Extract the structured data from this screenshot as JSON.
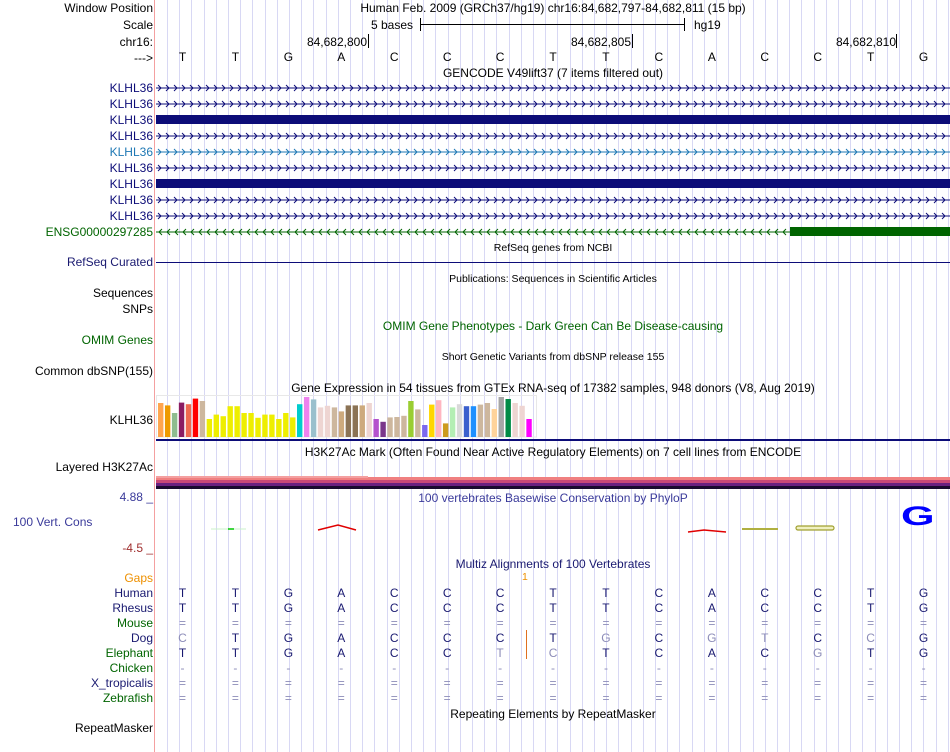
{
  "header": {
    "window_position_label": "Window Position",
    "scale_label": "Scale",
    "chrom_label": "chr16:",
    "strand_label": "--->",
    "assembly_title": "Human Feb. 2009 (GRCh37/hg19)   chr16:84,682,797-84,682,811 (15 bp)",
    "scale_text": "5 bases",
    "scale_db": "hg19",
    "ruler_ticks": [
      "84,682,800",
      "84,682,805",
      "84,682,810"
    ]
  },
  "sequence": [
    "T",
    "T",
    "G",
    "A",
    "C",
    "C",
    "C",
    "T",
    "T",
    "C",
    "A",
    "C",
    "C",
    "T",
    "G"
  ],
  "gencode": {
    "title": "GENCODE V49lift37 (7 items filtered out)",
    "items": [
      {
        "label": "KLHL36",
        "style": "intron",
        "color": "#0c0c78"
      },
      {
        "label": "KLHL36",
        "style": "intron",
        "color": "#0c0c78"
      },
      {
        "label": "KLHL36",
        "style": "exon",
        "color": "#0c0c78"
      },
      {
        "label": "KLHL36",
        "style": "intron",
        "color": "#0c0c78"
      },
      {
        "label": "KLHL36",
        "style": "intron",
        "color": "#1e78b4"
      },
      {
        "label": "KLHL36",
        "style": "intron",
        "color": "#0c0c78"
      },
      {
        "label": "KLHL36",
        "style": "exon",
        "color": "#0c0c78"
      },
      {
        "label": "KLHL36",
        "style": "intron",
        "color": "#0c0c78"
      },
      {
        "label": "KLHL36",
        "style": "intron",
        "color": "#0c0c78"
      },
      {
        "label": "ENSG00000297285",
        "style": "reverse-partial",
        "color": "#006400"
      }
    ]
  },
  "refseq": {
    "title": "RefSeq genes from NCBI",
    "label": "RefSeq Curated"
  },
  "publications": {
    "title": "Publications: Sequences in Scientific Articles",
    "label1": "Sequences",
    "label2": "SNPs"
  },
  "omim": {
    "title": "OMIM Gene Phenotypes - Dark Green Can Be Disease-causing",
    "label": "OMIM Genes"
  },
  "dbsnp": {
    "title": "Short Genetic Variants from dbSNP release 155",
    "label": "Common dbSNP(155)"
  },
  "gtex": {
    "title": "Gene Expression in 54 tissues from GTEx RNA-seq of 17382 samples, 948 donors (V8, Aug 2019)",
    "label": "KLHL36"
  },
  "chart_data": {
    "type": "bar",
    "title": "Gene Expression in 54 tissues from GTEx RNA-seq of 17382 samples, 948 donors (V8, Aug 2019)",
    "xlabel": "",
    "ylabel": "",
    "ylim": [
      0,
      1
    ],
    "values": [
      0.85,
      0.79,
      0.6,
      0.86,
      0.82,
      0.96,
      0.9,
      0.45,
      0.56,
      0.52,
      0.77,
      0.77,
      0.6,
      0.6,
      0.48,
      0.56,
      0.56,
      0.45,
      0.6,
      0.49,
      0.82,
      1.0,
      0.94,
      0.74,
      0.78,
      0.74,
      0.64,
      0.79,
      0.79,
      0.79,
      0.85,
      0.45,
      0.38,
      0.49,
      0.5,
      0.53,
      0.9,
      0.69,
      0.3,
      0.81,
      0.92,
      0.34,
      0.74,
      0.82,
      0.77,
      0.77,
      0.81,
      0.85,
      0.7,
      1.0,
      0.95,
      0.85,
      0.78,
      0.45
    ],
    "colors": [
      "#FFA54F",
      "#EE9A00",
      "#8FBC8F",
      "#8B1C62",
      "#EE6A50",
      "#FF0000",
      "#CDB79E",
      "#EEEE00",
      "#EEEE00",
      "#EEEE00",
      "#EEEE00",
      "#EEEE00",
      "#EEEE00",
      "#EEEE00",
      "#EEEE00",
      "#EEEE00",
      "#EEEE00",
      "#EEEE00",
      "#EEEE00",
      "#EEEE00",
      "#00CDCD",
      "#EE82EE",
      "#9AC0CD",
      "#EED5D2",
      "#EED5D2",
      "#CDB79E",
      "#CDAA7D",
      "#8B7355",
      "#8B7355",
      "#CDAA7D",
      "#EED5D2",
      "#B452CD",
      "#7A378B",
      "#CDB79E",
      "#CDB79E",
      "#CDB79E",
      "#9ACD32",
      "#CDB79E",
      "#7B68EE",
      "#FFD700",
      "#FFB6C1",
      "#CD9B1D",
      "#B4EEB4",
      "#D9D9D9",
      "#3A5FCD",
      "#1E90FF",
      "#CDB79E",
      "#CDB79E",
      "#FFD39B",
      "#A6A6A6",
      "#008B45",
      "#EED5D2",
      "#EED5D2",
      "#FF00FF"
    ]
  },
  "h3k27ac": {
    "title": "H3K27Ac Mark (Often Found Near Active Regulatory Elements) on 7 cell lines from ENCODE",
    "label": "Layered H3K27Ac"
  },
  "phylop": {
    "title": "100 vertebrates Basewise Conservation by PhyloP",
    "label": "100 Vert. Cons",
    "ymax_label": "4.88 _",
    "ymin_label": "-4.5 _",
    "logo_letter": "G"
  },
  "multiz": {
    "title": "Multiz Alignments of 100 Vertebrates",
    "gaps_label": "Gaps",
    "gap_count": "1",
    "species": [
      {
        "name": "Human",
        "color": "#191970",
        "seq": [
          "T",
          "T",
          "G",
          "A",
          "C",
          "C",
          "C",
          "T",
          "T",
          "C",
          "A",
          "C",
          "C",
          "T",
          "G"
        ],
        "faint": [
          false,
          false,
          false,
          false,
          false,
          false,
          false,
          false,
          false,
          false,
          false,
          false,
          false,
          false,
          false
        ]
      },
      {
        "name": "Rhesus",
        "color": "#191970",
        "seq": [
          "T",
          "T",
          "G",
          "A",
          "C",
          "C",
          "C",
          "T",
          "T",
          "C",
          "A",
          "C",
          "C",
          "T",
          "G"
        ],
        "faint": [
          false,
          false,
          false,
          false,
          false,
          false,
          false,
          false,
          false,
          false,
          false,
          false,
          false,
          false,
          false
        ]
      },
      {
        "name": "Mouse",
        "color": "#006400",
        "seq": [
          "=",
          "=",
          "=",
          "=",
          "=",
          "=",
          "=",
          "=",
          "=",
          "=",
          "=",
          "=",
          "=",
          "=",
          "="
        ],
        "faint": [
          true,
          true,
          true,
          true,
          true,
          true,
          true,
          true,
          true,
          true,
          true,
          true,
          true,
          true,
          true
        ]
      },
      {
        "name": "Dog",
        "color": "#191970",
        "seq": [
          "C",
          "T",
          "G",
          "A",
          "C",
          "C",
          "C",
          "T",
          "G",
          "C",
          "G",
          "T",
          "C",
          "C",
          "G"
        ],
        "faint": [
          true,
          false,
          false,
          false,
          false,
          false,
          false,
          false,
          true,
          false,
          true,
          true,
          false,
          true,
          false
        ]
      },
      {
        "name": "Elephant",
        "color": "#006400",
        "seq": [
          "T",
          "T",
          "G",
          "A",
          "C",
          "C",
          "T",
          "C",
          "T",
          "C",
          "A",
          "C",
          "G",
          "T",
          "G"
        ],
        "faint": [
          false,
          false,
          false,
          false,
          false,
          false,
          true,
          true,
          false,
          false,
          false,
          false,
          true,
          false,
          false
        ]
      },
      {
        "name": "Chicken",
        "color": "#006400",
        "seq": [
          "-",
          "-",
          "-",
          "-",
          "-",
          "-",
          "-",
          "-",
          "-",
          "-",
          "-",
          "-",
          "-",
          "-",
          "-"
        ],
        "faint": [
          true,
          true,
          true,
          true,
          true,
          true,
          true,
          true,
          true,
          true,
          true,
          true,
          true,
          true,
          true
        ]
      },
      {
        "name": "X_tropicalis",
        "color": "#191970",
        "seq": [
          "=",
          "=",
          "=",
          "=",
          "=",
          "=",
          "=",
          "=",
          "=",
          "=",
          "=",
          "=",
          "=",
          "=",
          "="
        ],
        "faint": [
          true,
          true,
          true,
          true,
          true,
          true,
          true,
          true,
          true,
          true,
          true,
          true,
          true,
          true,
          true
        ]
      },
      {
        "name": "Zebrafish",
        "color": "#006400",
        "seq": [
          "=",
          "=",
          "=",
          "=",
          "=",
          "=",
          "=",
          "=",
          "=",
          "=",
          "=",
          "=",
          "=",
          "=",
          "="
        ],
        "faint": [
          true,
          true,
          true,
          true,
          true,
          true,
          true,
          true,
          true,
          true,
          true,
          true,
          true,
          true,
          true
        ]
      }
    ]
  },
  "repeatmasker": {
    "title": "Repeating Elements by RepeatMasker",
    "label": "RepeatMasker"
  }
}
